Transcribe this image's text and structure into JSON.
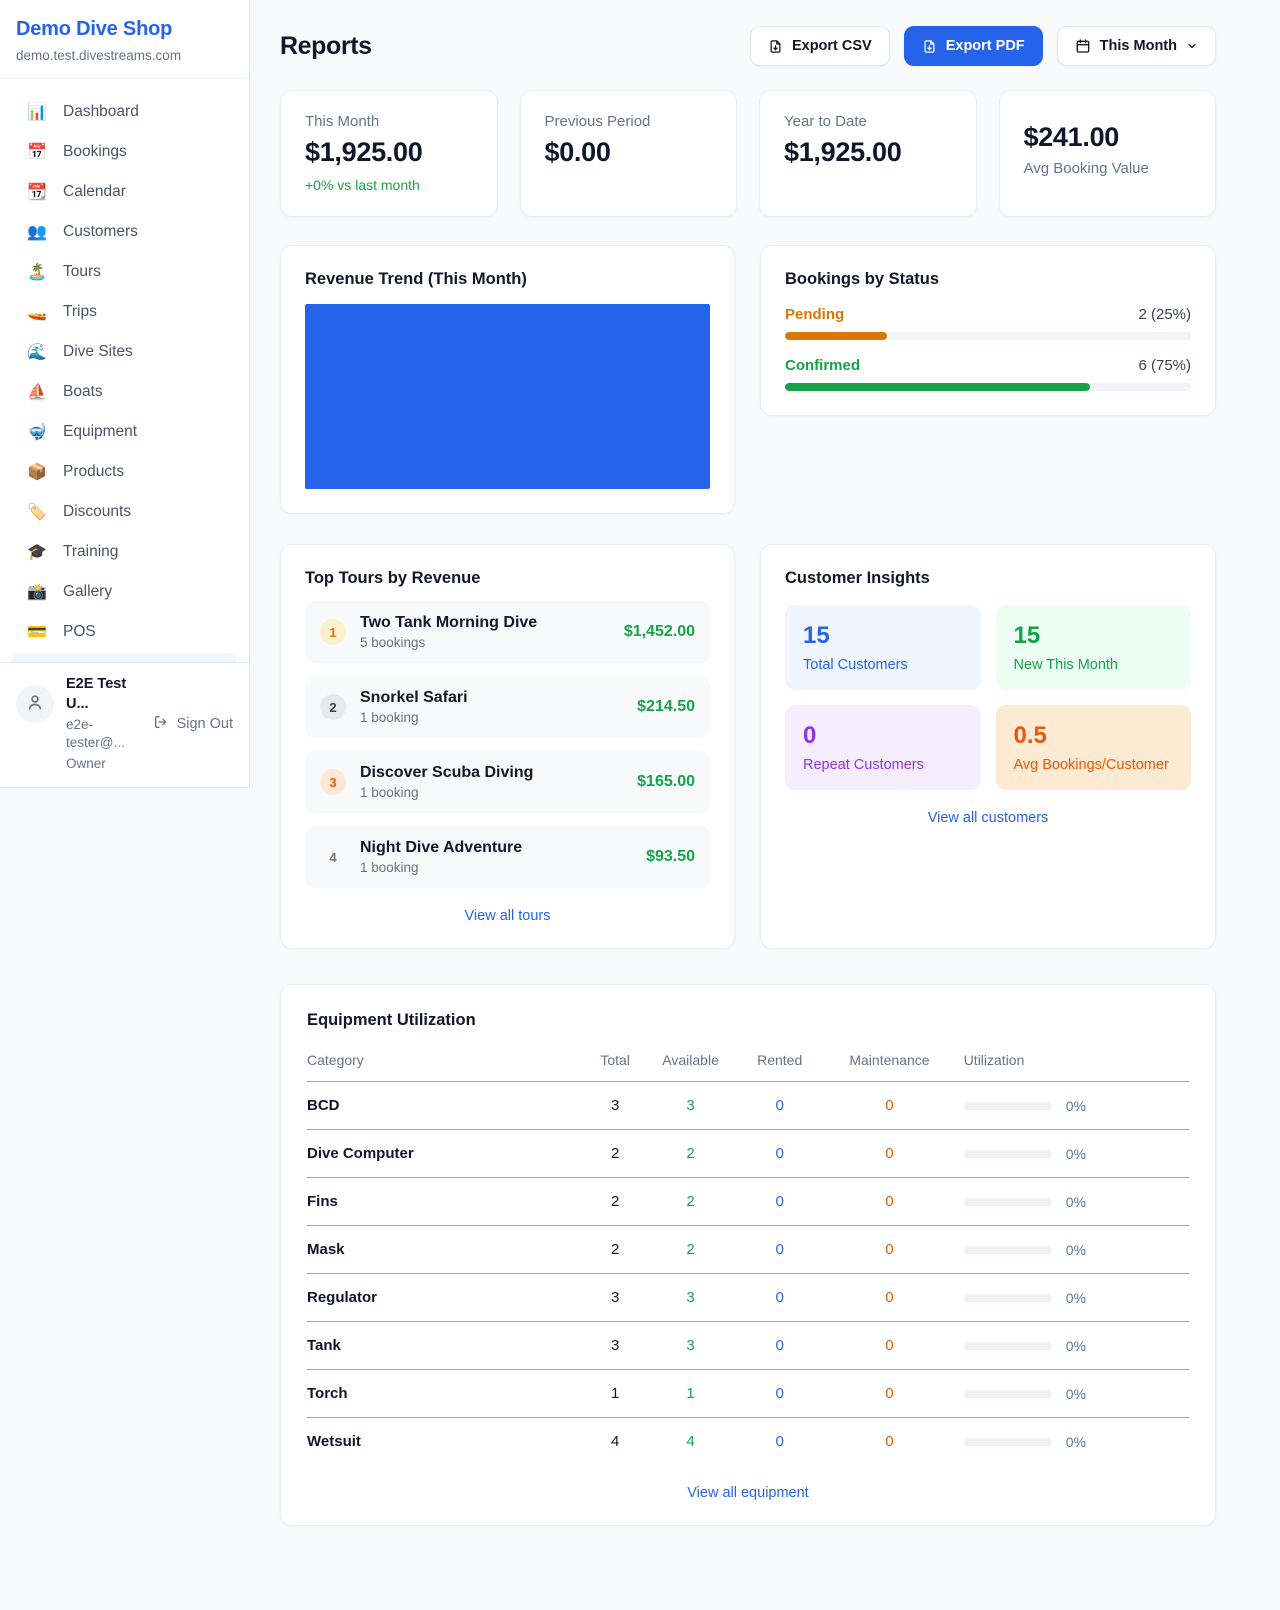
{
  "sidebar": {
    "shop_name": "Demo Dive Shop",
    "domain": "demo.test.divestreams.com",
    "items": [
      {
        "label": "Dashboard",
        "icon": "📊",
        "icon_name": "bar-chart-icon"
      },
      {
        "label": "Bookings",
        "icon": "📅",
        "icon_name": "calendar-date-icon"
      },
      {
        "label": "Calendar",
        "icon": "📆",
        "icon_name": "calendar-icon"
      },
      {
        "label": "Customers",
        "icon": "👥",
        "icon_name": "people-icon"
      },
      {
        "label": "Tours",
        "icon": "🏝️",
        "icon_name": "island-icon"
      },
      {
        "label": "Trips",
        "icon": "🚤",
        "icon_name": "speedboat-icon"
      },
      {
        "label": "Dive Sites",
        "icon": "🌊",
        "icon_name": "wave-icon"
      },
      {
        "label": "Boats",
        "icon": "⛵",
        "icon_name": "sailboat-icon"
      },
      {
        "label": "Equipment",
        "icon": "🤿",
        "icon_name": "diving-mask-icon"
      },
      {
        "label": "Products",
        "icon": "📦",
        "icon_name": "package-icon"
      },
      {
        "label": "Discounts",
        "icon": "🏷️",
        "icon_name": "tag-icon"
      },
      {
        "label": "Training",
        "icon": "🎓",
        "icon_name": "graduation-cap-icon"
      },
      {
        "label": "Gallery",
        "icon": "📸",
        "icon_name": "camera-icon"
      },
      {
        "label": "POS",
        "icon": "💳",
        "icon_name": "credit-card-icon"
      }
    ],
    "user": {
      "name": "E2E Test U...",
      "email": "e2e-tester@...",
      "role": "Owner",
      "sign_out_label": "Sign Out"
    }
  },
  "header": {
    "title": "Reports",
    "export_csv_label": "Export CSV",
    "export_pdf_label": "Export PDF",
    "period_label": "This Month"
  },
  "stats": [
    {
      "label": "This Month",
      "value": "$1,925.00",
      "delta": "+0% vs last month"
    },
    {
      "label": "Previous Period",
      "value": "$0.00"
    },
    {
      "label": "Year to Date",
      "value": "$1,925.00"
    },
    {
      "value": "$241.00",
      "label": "Avg Booking Value"
    }
  ],
  "revenue_trend": {
    "title": "Revenue Trend (This Month)",
    "bar_color": "#2563eb"
  },
  "bookings_by_status": {
    "title": "Bookings by Status",
    "rows": [
      {
        "label": "Pending",
        "value": "2 (25%)",
        "percent": 25,
        "color": "#d97706"
      },
      {
        "label": "Confirmed",
        "value": "6 (75%)",
        "percent": 75,
        "color": "#16a34a"
      }
    ]
  },
  "top_tours": {
    "title": "Top Tours by Revenue",
    "view_all_label": "View all tours",
    "rows": [
      {
        "rank": 1,
        "name": "Two Tank Morning Dive",
        "bookings": "5 bookings",
        "amount": "$1,452.00"
      },
      {
        "rank": 2,
        "name": "Snorkel Safari",
        "bookings": "1 booking",
        "amount": "$214.50"
      },
      {
        "rank": 3,
        "name": "Discover Scuba Diving",
        "bookings": "1 booking",
        "amount": "$165.00"
      },
      {
        "rank": 4,
        "name": "Night Dive Adventure",
        "bookings": "1 booking",
        "amount": "$93.50"
      }
    ]
  },
  "customer_insights": {
    "title": "Customer Insights",
    "view_all_label": "View all customers",
    "tiles": [
      {
        "value": "15",
        "label": "Total Customers",
        "color": "#2563eb",
        "bg": "#eff6ff"
      },
      {
        "value": "15",
        "label": "New This Month",
        "color": "#16a34a",
        "bg": "#ecfdf3"
      },
      {
        "value": "0",
        "label": "Repeat Customers",
        "color": "#9333ea",
        "bg": "#f6eefe"
      },
      {
        "value": "0.5",
        "label": "Avg Bookings/Customer",
        "color": "#ea580c",
        "bg": "#fdead2"
      }
    ]
  },
  "equipment_utilization": {
    "title": "Equipment Utilization",
    "view_all_label": "View all equipment",
    "columns": [
      "Category",
      "Total",
      "Available",
      "Rented",
      "Maintenance",
      "Utilization"
    ],
    "rows": [
      {
        "category": "BCD",
        "total": "3",
        "available": "3",
        "rented": "0",
        "maintenance": "0",
        "utilization": "0%",
        "utilization_percent": 0
      },
      {
        "category": "Dive Computer",
        "total": "2",
        "available": "2",
        "rented": "0",
        "maintenance": "0",
        "utilization": "0%",
        "utilization_percent": 0
      },
      {
        "category": "Fins",
        "total": "2",
        "available": "2",
        "rented": "0",
        "maintenance": "0",
        "utilization": "0%",
        "utilization_percent": 0
      },
      {
        "category": "Mask",
        "total": "2",
        "available": "2",
        "rented": "0",
        "maintenance": "0",
        "utilization": "0%",
        "utilization_percent": 0
      },
      {
        "category": "Regulator",
        "total": "3",
        "available": "3",
        "rented": "0",
        "maintenance": "0",
        "utilization": "0%",
        "utilization_percent": 0
      },
      {
        "category": "Tank",
        "total": "3",
        "available": "3",
        "rented": "0",
        "maintenance": "0",
        "utilization": "0%",
        "utilization_percent": 0
      },
      {
        "category": "Torch",
        "total": "1",
        "available": "1",
        "rented": "0",
        "maintenance": "0",
        "utilization": "0%",
        "utilization_percent": 0
      },
      {
        "category": "Wetsuit",
        "total": "4",
        "available": "4",
        "rented": "0",
        "maintenance": "0",
        "utilization": "0%",
        "utilization_percent": 0
      }
    ]
  }
}
